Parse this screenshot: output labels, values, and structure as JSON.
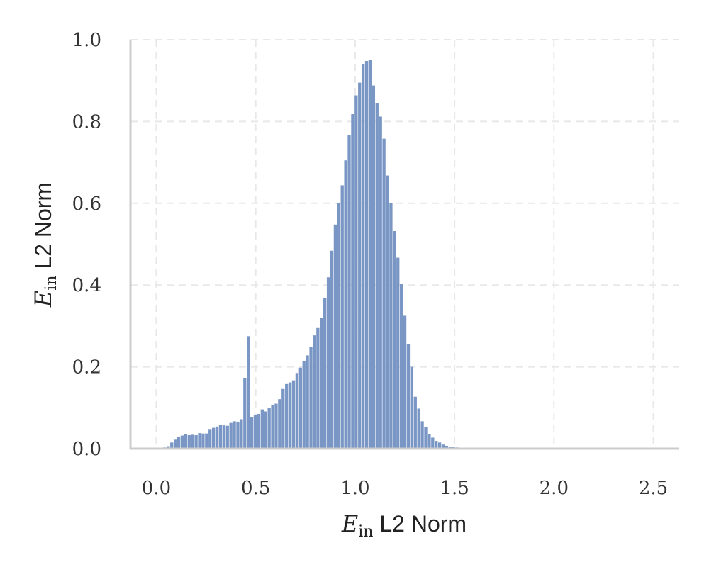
{
  "chart_data": {
    "type": "bar",
    "subtype": "histogram",
    "title": "",
    "xlabel": {
      "math": "E",
      "sub": "in",
      "text": " L2 Norm"
    },
    "ylabel": {
      "math": "E",
      "sub": "in",
      "text": " L2 Norm"
    },
    "xlim": [
      -0.13,
      2.63
    ],
    "ylim": [
      0,
      1.0
    ],
    "xticks": [
      0.0,
      0.5,
      1.0,
      1.5,
      2.0,
      2.5
    ],
    "xtick_labels": [
      "0.0",
      "0.5",
      "1.0",
      "1.5",
      "2.0",
      "2.5"
    ],
    "yticks": [
      0.0,
      0.2,
      0.4,
      0.6,
      0.8,
      1.0
    ],
    "ytick_labels": [
      "0.0",
      "0.2",
      "0.4",
      "0.6",
      "0.8",
      "1.0"
    ],
    "grid": true,
    "bar_color": "#7996c5",
    "bin_start": 0.0,
    "bin_width": 0.0175,
    "values": [
      0.001,
      0.002,
      0.003,
      0.006,
      0.015,
      0.022,
      0.028,
      0.032,
      0.035,
      0.033,
      0.034,
      0.033,
      0.038,
      0.037,
      0.037,
      0.048,
      0.051,
      0.054,
      0.058,
      0.057,
      0.056,
      0.063,
      0.067,
      0.066,
      0.072,
      0.173,
      0.275,
      0.078,
      0.082,
      0.085,
      0.096,
      0.091,
      0.099,
      0.106,
      0.11,
      0.121,
      0.146,
      0.158,
      0.162,
      0.167,
      0.185,
      0.198,
      0.215,
      0.228,
      0.248,
      0.277,
      0.295,
      0.32,
      0.368,
      0.419,
      0.484,
      0.548,
      0.6,
      0.644,
      0.705,
      0.766,
      0.818,
      0.864,
      0.895,
      0.94,
      0.948,
      0.95,
      0.888,
      0.844,
      0.812,
      0.758,
      0.668,
      0.6,
      0.532,
      0.467,
      0.402,
      0.325,
      0.255,
      0.2,
      0.127,
      0.098,
      0.067,
      0.052,
      0.035,
      0.027,
      0.019,
      0.015,
      0.01,
      0.007,
      0.005,
      0.004,
      0.003,
      0.002,
      0.002,
      0.002,
      0.001,
      0.001,
      0.001,
      0.001,
      0.001,
      0.001,
      0.001,
      0.001,
      0.001,
      0.001,
      0.001,
      0.001,
      0.001,
      0.001,
      0.001,
      0.001,
      0.001,
      0.001,
      0.001,
      0.001,
      0.001,
      0.001,
      0.001,
      0.001,
      0.001,
      0.001,
      0.001,
      0.001,
      0.001,
      0.001,
      0.001,
      0.001,
      0.001,
      0.001,
      0.001,
      0.001,
      0.001,
      0.001,
      0.001,
      0.001,
      0.001,
      0.001,
      0.001,
      0.001,
      0.001,
      0.001,
      0.001,
      0.001,
      0.001,
      0.001,
      0.001,
      0.001,
      0.001,
      0.001
    ]
  }
}
